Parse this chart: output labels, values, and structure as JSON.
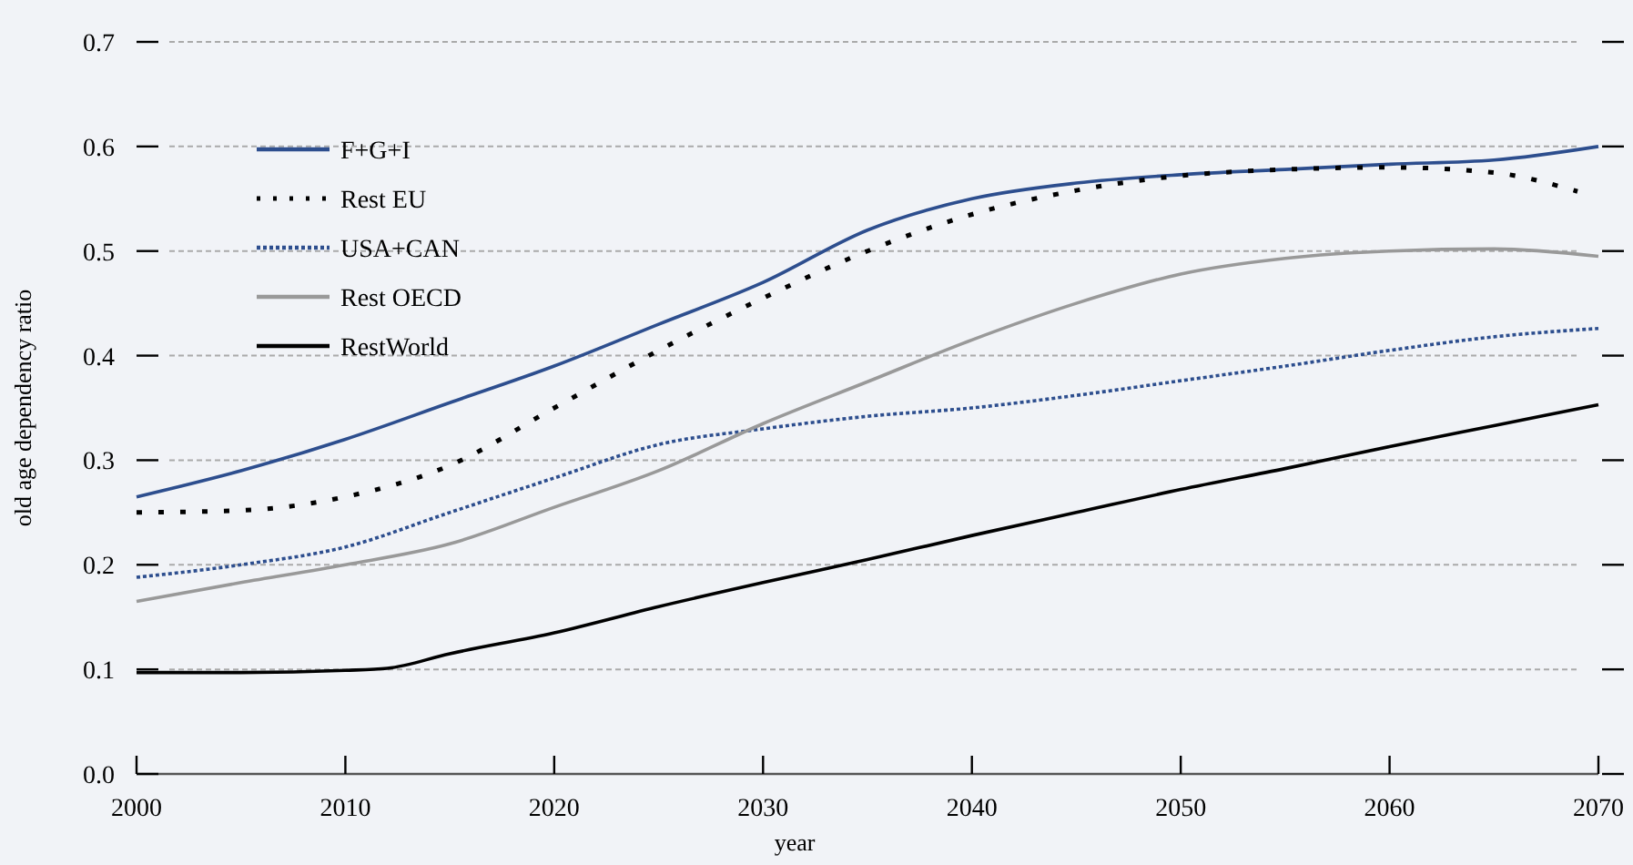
{
  "chart_data": {
    "type": "line",
    "xlabel": "year",
    "ylabel": "old age dependency ratio",
    "x": [
      2000,
      2005,
      2010,
      2015,
      2020,
      2025,
      2030,
      2035,
      2040,
      2045,
      2050,
      2055,
      2060,
      2065,
      2070
    ],
    "xlim": [
      2000,
      2070
    ],
    "xticks": [
      2000,
      2010,
      2020,
      2030,
      2040,
      2050,
      2060,
      2070
    ],
    "ylim": [
      0,
      0.7
    ],
    "yticks": [
      {
        "value": 0,
        "label": "0.0"
      },
      0.1,
      0.2,
      0.3,
      0.4,
      0.5,
      0.6,
      0.7
    ],
    "grid": "y",
    "legend": "top left",
    "series": [
      {
        "name": "F+G+I",
        "color": "#2d4e8e",
        "line_style": "solid",
        "values": [
          0.265,
          0.29,
          0.32,
          0.355,
          0.39,
          0.43,
          0.47,
          0.52,
          0.55,
          0.565,
          0.573,
          0.578,
          0.583,
          0.587,
          0.6
        ]
      },
      {
        "name": "Rest EU",
        "color": "#000000",
        "line_style": "dotted",
        "x": [
          2000,
          2005,
          2010,
          2015,
          2020,
          2025,
          2030,
          2035,
          2040,
          2045,
          2050,
          2055,
          2060,
          2065,
          2069
        ],
        "values": [
          0.25,
          0.252,
          0.265,
          0.295,
          0.35,
          0.405,
          0.455,
          0.5,
          0.535,
          0.558,
          0.572,
          0.578,
          0.58,
          0.575,
          0.557
        ]
      },
      {
        "name": "USA+CAN",
        "color": "#2d4e8e",
        "line_style": "dotted",
        "values": [
          0.188,
          0.2,
          0.217,
          0.25,
          0.283,
          0.315,
          0.33,
          0.342,
          0.35,
          0.362,
          0.376,
          0.39,
          0.405,
          0.418,
          0.426
        ]
      },
      {
        "name": "Rest OECD",
        "color": "#999999",
        "line_style": "solid",
        "values": [
          0.165,
          0.183,
          0.2,
          0.22,
          0.255,
          0.29,
          0.335,
          0.375,
          0.415,
          0.45,
          0.478,
          0.493,
          0.5,
          0.502,
          0.495
        ]
      },
      {
        "name": "RestWorld",
        "color": "#000000",
        "line_style": "solid",
        "x": [
          2000,
          2005,
          2010,
          2012,
          2015,
          2020,
          2025,
          2030,
          2035,
          2040,
          2045,
          2050,
          2055,
          2060,
          2065,
          2070
        ],
        "values": [
          0.097,
          0.097,
          0.099,
          0.101,
          0.115,
          0.135,
          0.16,
          0.183,
          0.205,
          0.228,
          0.25,
          0.272,
          0.292,
          0.313,
          0.333,
          0.353
        ]
      }
    ]
  }
}
